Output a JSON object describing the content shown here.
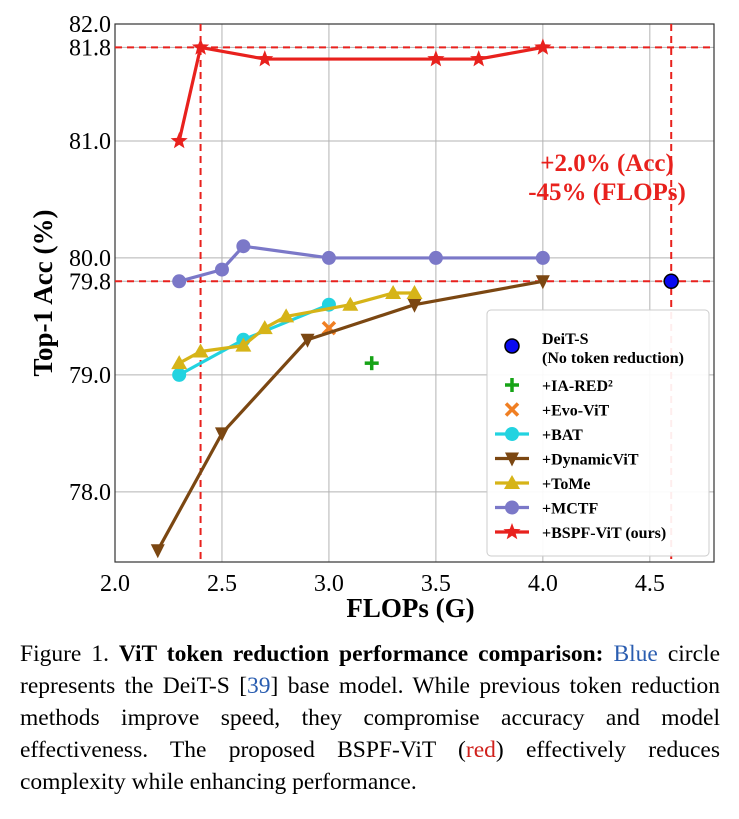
{
  "chart_data": {
    "type": "line",
    "xlabel": "FLOPs (G)",
    "ylabel": "Top-1 Acc (%)",
    "xlim": [
      2.0,
      4.8
    ],
    "ylim": [
      77.4,
      82.0
    ],
    "xticks": [
      {
        "v": 2.0,
        "label": "2.0"
      },
      {
        "v": 2.5,
        "label": "2.5"
      },
      {
        "v": 3.0,
        "label": "3.0"
      },
      {
        "v": 3.5,
        "label": "3.5"
      },
      {
        "v": 4.0,
        "label": "4.0"
      },
      {
        "v": 4.5,
        "label": "4.5"
      }
    ],
    "yticks": [
      {
        "v": 78.0,
        "label": "78.0"
      },
      {
        "v": 79.0,
        "label": "79.0"
      },
      {
        "v": 79.8,
        "label": "79.8"
      },
      {
        "v": 80.0,
        "label": "80.0"
      },
      {
        "v": 81.0,
        "label": "81.0"
      },
      {
        "v": 81.8,
        "label": "81.8"
      },
      {
        "v": 82.0,
        "label": "82.0"
      }
    ],
    "ref_lines": {
      "h": [
        81.8,
        79.8
      ],
      "v": [
        2.4,
        4.6
      ],
      "color": "#e8211d"
    },
    "annotation": {
      "lines": [
        "+2.0% (Acc)",
        "-45% (FLOPs)"
      ],
      "color": "#e8211d",
      "x": 4.3,
      "y": 81.0
    },
    "series": [
      {
        "name": "DeiT-S",
        "name2": "(No token reduction)",
        "marker": "circle",
        "color": "#0a0af0",
        "edge": "#000000",
        "line": false,
        "points": [
          [
            4.6,
            79.8
          ]
        ]
      },
      {
        "name": "+IA-RED²",
        "marker": "plus",
        "color": "#16a316",
        "line": false,
        "points": [
          [
            3.2,
            79.1
          ]
        ]
      },
      {
        "name": "+Evo-ViT",
        "marker": "x",
        "color": "#f07f23",
        "line": false,
        "points": [
          [
            3.0,
            79.4
          ]
        ]
      },
      {
        "name": "+BAT",
        "marker": "circle",
        "color": "#22d3e0",
        "line": true,
        "points": [
          [
            2.3,
            79.0
          ],
          [
            2.6,
            79.3
          ],
          [
            3.0,
            79.6
          ]
        ]
      },
      {
        "name": "+DynamicViT",
        "marker": "tri-down",
        "color": "#7b4712",
        "line": true,
        "points": [
          [
            2.2,
            77.5
          ],
          [
            2.5,
            78.5
          ],
          [
            2.9,
            79.3
          ],
          [
            3.4,
            79.6
          ],
          [
            4.0,
            79.8
          ]
        ]
      },
      {
        "name": "+ToMe",
        "marker": "tri-up",
        "color": "#d6b418",
        "line": true,
        "points": [
          [
            2.3,
            79.1
          ],
          [
            2.4,
            79.2
          ],
          [
            2.6,
            79.25
          ],
          [
            2.7,
            79.4
          ],
          [
            2.8,
            79.5
          ],
          [
            3.1,
            79.6
          ],
          [
            3.3,
            79.7
          ],
          [
            3.4,
            79.7
          ]
        ]
      },
      {
        "name": "+MCTF",
        "marker": "circle",
        "color": "#7b78c8",
        "line": true,
        "points": [
          [
            2.3,
            79.8
          ],
          [
            2.5,
            79.9
          ],
          [
            2.6,
            80.1
          ],
          [
            3.0,
            80.0
          ],
          [
            3.5,
            80.0
          ],
          [
            4.0,
            80.0
          ]
        ]
      },
      {
        "name": "+BSPF-ViT (ours)",
        "marker": "star",
        "color": "#e8211d",
        "line": true,
        "points": [
          [
            2.3,
            81.0
          ],
          [
            2.4,
            81.8
          ],
          [
            2.7,
            81.7
          ],
          [
            3.5,
            81.7
          ],
          [
            3.7,
            81.7
          ],
          [
            4.0,
            81.8
          ]
        ]
      }
    ]
  },
  "caption": {
    "label": "Figure 1.",
    "bold_title": "ViT token reduction performance comparison:",
    "blue_word": "Blue",
    "t1": " circle represents the DeiT-S [",
    "ref_num": "39",
    "t2": "] base model. While previous token reduction methods improve speed, they compromise accuracy and model effectiveness. The proposed BSPF-ViT (",
    "red_word": "red",
    "t3": ") effectively reduces complexity while enhancing performance."
  }
}
